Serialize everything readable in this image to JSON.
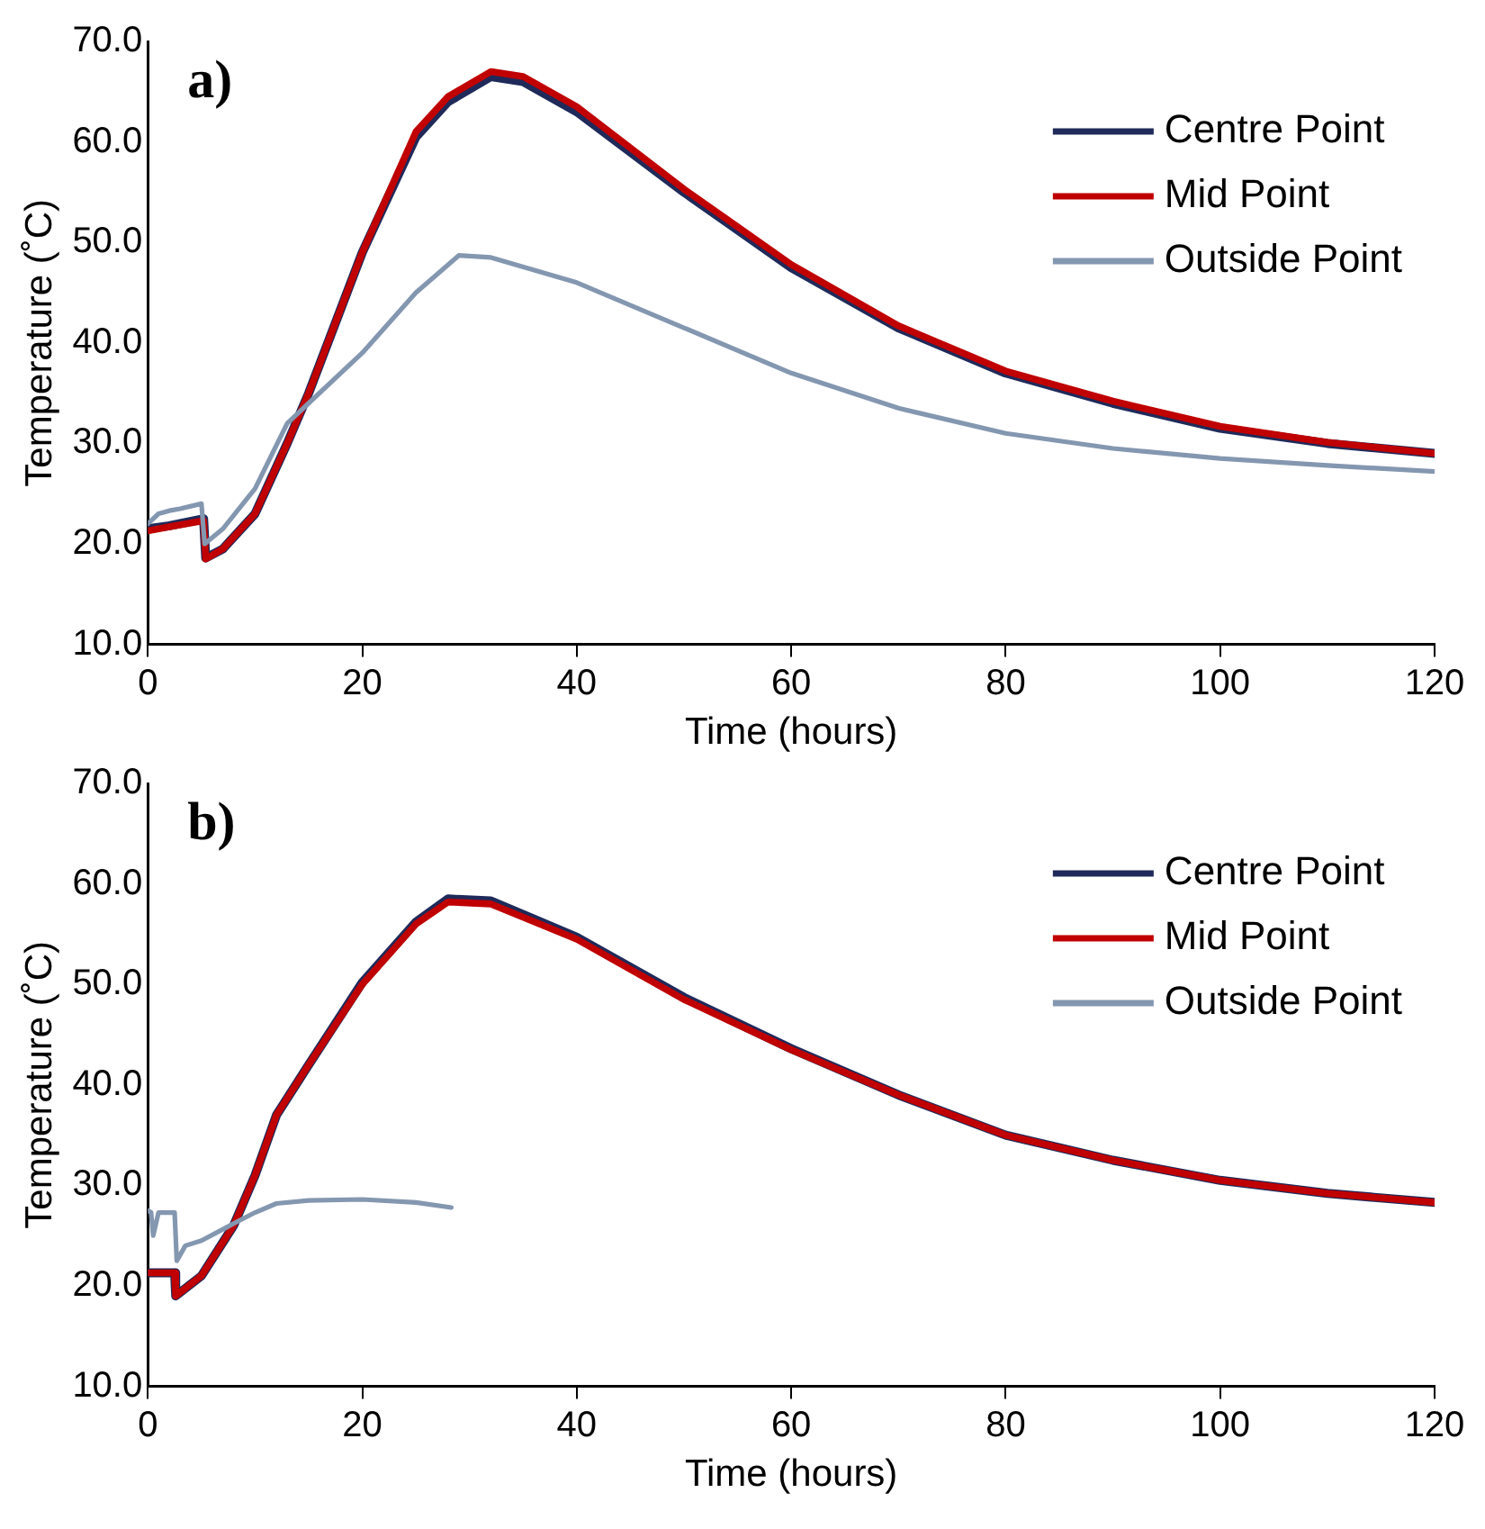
{
  "chart_data": [
    {
      "type": "line",
      "title": "a)",
      "xlabel": "Time (hours)",
      "ylabel": "Temperature (˚C)",
      "xlim": [
        0,
        120
      ],
      "xticks": [
        0,
        20,
        40,
        60,
        80,
        100,
        120
      ],
      "ylim": [
        10,
        70
      ],
      "yticks": [
        {
          "value": 10,
          "label": "10.0"
        },
        {
          "value": 20,
          "label": "20.0"
        },
        {
          "value": 30,
          "label": "30.0"
        },
        {
          "value": 40,
          "label": "40.0"
        },
        {
          "value": 50,
          "label": "50.0"
        },
        {
          "value": 60,
          "label": "60.0"
        },
        {
          "value": 70,
          "label": "70.0"
        }
      ],
      "grid": false,
      "legend": "top right",
      "marker": "none",
      "line_style": "solid",
      "series": [
        {
          "name": "Centre Point",
          "color": "#1f2a5a",
          "x": [
            0,
            2,
            5.2,
            5.4,
            7,
            10,
            13,
            15,
            20,
            25,
            28,
            32,
            35,
            40,
            50,
            60,
            70,
            80,
            90,
            100,
            110,
            120
          ],
          "values": [
            21.5,
            21.8,
            22.5,
            18.6,
            19.5,
            23,
            30,
            35,
            49,
            60.5,
            64,
            66.5,
            66,
            63,
            55,
            47.5,
            41.5,
            37,
            34,
            31.5,
            30,
            29
          ]
        },
        {
          "name": "Mid Point",
          "color": "#c00000",
          "x": [
            0,
            2,
            5.2,
            5.4,
            7,
            10,
            13,
            15,
            20,
            25,
            28,
            32,
            35,
            40,
            50,
            60,
            70,
            80,
            90,
            100,
            110,
            120
          ],
          "values": [
            21.3,
            21.7,
            22.3,
            18.5,
            19.5,
            23,
            30,
            35,
            49,
            61,
            64.5,
            67,
            66.5,
            63.5,
            55.3,
            47.8,
            41.7,
            37.2,
            34.2,
            31.7,
            30.1,
            29
          ]
        },
        {
          "name": "Outside Point",
          "color": "#8497b0",
          "x": [
            0,
            1,
            2,
            3,
            5,
            5.3,
            7,
            10,
            13,
            15,
            20,
            25,
            29,
            32,
            40,
            50,
            60,
            70,
            80,
            90,
            100,
            110,
            120
          ],
          "values": [
            22,
            23,
            23.3,
            23.5,
            24,
            20,
            21.5,
            25.5,
            32,
            34,
            39,
            45,
            48.7,
            48.5,
            46,
            41.5,
            37,
            33.5,
            31,
            29.5,
            28.5,
            27.8,
            27.2
          ]
        }
      ]
    },
    {
      "type": "line",
      "title": "b)",
      "xlabel": "Time (hours)",
      "ylabel": "Temperature (˚C)",
      "xlim": [
        0,
        120
      ],
      "xticks": [
        0,
        20,
        40,
        60,
        80,
        100,
        120
      ],
      "ylim": [
        10,
        70
      ],
      "yticks": [
        {
          "value": 10,
          "label": "10.0"
        },
        {
          "value": 20,
          "label": "20.0"
        },
        {
          "value": 30,
          "label": "30.0"
        },
        {
          "value": 40,
          "label": "40.0"
        },
        {
          "value": 50,
          "label": "50.0"
        },
        {
          "value": 60,
          "label": "60.0"
        },
        {
          "value": 70,
          "label": "70.0"
        }
      ],
      "grid": false,
      "legend": "top right",
      "marker": "none",
      "line_style": "solid",
      "series": [
        {
          "name": "Centre Point",
          "color": "#1f2a5a",
          "x": [
            0,
            2.5,
            2.6,
            5,
            8,
            10,
            12,
            15,
            20,
            25,
            28,
            32,
            40,
            50,
            60,
            70,
            80,
            90,
            100,
            110,
            120
          ],
          "values": [
            21.3,
            21.3,
            19,
            21,
            26,
            31,
            37,
            42,
            50.2,
            56.2,
            58.5,
            58.3,
            54.7,
            48.7,
            43.6,
            39,
            35,
            32.5,
            30.5,
            29.2,
            28.3
          ]
        },
        {
          "name": "Mid Point",
          "color": "#c00000",
          "x": [
            0,
            2.5,
            2.6,
            5,
            8,
            10,
            12,
            15,
            20,
            25,
            28,
            32,
            40,
            50,
            60,
            70,
            80,
            90,
            100,
            110,
            120
          ],
          "values": [
            21.3,
            21.3,
            19,
            21,
            26,
            31,
            37,
            42,
            50,
            56,
            58.2,
            58,
            54.5,
            48.5,
            43.5,
            39,
            35,
            32.5,
            30.5,
            29.2,
            28.3
          ]
        },
        {
          "name": "Outside Point",
          "color": "#8497b0",
          "x": [
            0,
            0.3,
            0.5,
            1,
            2.5,
            2.7,
            3.5,
            5,
            8,
            10,
            12,
            15,
            20,
            25,
            28.3
          ],
          "values": [
            27.5,
            27.3,
            25,
            27.3,
            27.3,
            22.5,
            24,
            24.5,
            26.2,
            27.3,
            28.2,
            28.5,
            28.6,
            28.3,
            27.8
          ]
        }
      ]
    }
  ]
}
